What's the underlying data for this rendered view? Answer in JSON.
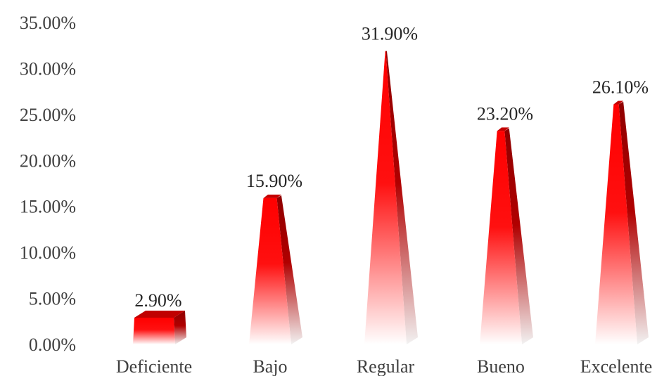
{
  "chart_data": {
    "type": "bar",
    "categories": [
      "Deficiente",
      "Bajo",
      "Regular",
      "Bueno",
      "Excelente"
    ],
    "values": [
      2.9,
      15.9,
      31.9,
      23.2,
      26.1
    ],
    "data_labels": [
      "2.90%",
      "15.90%",
      "31.90%",
      "23.20%",
      "26.10%"
    ],
    "y_ticks": [
      "0.00%",
      "5.00%",
      "10.00%",
      "15.00%",
      "20.00%",
      "25.00%",
      "30.00%",
      "35.00%"
    ],
    "ylim": [
      0,
      35
    ],
    "grid": false,
    "legend": "none",
    "shape": "3d-pyramid",
    "colors": {
      "bar": "#ff0000",
      "bar_side": "#a00000",
      "fade": "#ffffff"
    }
  }
}
